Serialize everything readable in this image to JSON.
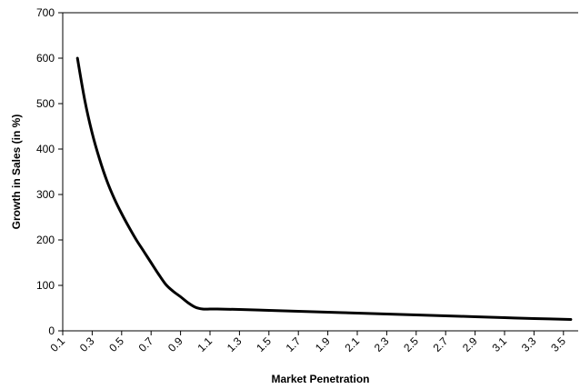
{
  "chart_data": {
    "type": "line",
    "title": "",
    "xlabel": "Market Penetration",
    "ylabel": "Growth in Sales (in %)",
    "xlim": [
      0.1,
      3.6
    ],
    "ylim": [
      0,
      700
    ],
    "grid": false,
    "x_ticks": [
      "0.1",
      "0.3",
      "0.5",
      "0.7",
      "0.9",
      "1.1",
      "1.3",
      "1.5",
      "1.7",
      "1.9",
      "2.1",
      "2.3",
      "2.5",
      "2.7",
      "2.9",
      "3.1",
      "3.3",
      "3.5"
    ],
    "y_ticks": [
      "0",
      "100",
      "200",
      "300",
      "400",
      "500",
      "600",
      "700"
    ],
    "series": [
      {
        "color": "#000000",
        "x": [
          0.2,
          0.25,
          0.3,
          0.35,
          0.4,
          0.45,
          0.5,
          0.55,
          0.6,
          0.65,
          0.7,
          0.75,
          0.8,
          0.85,
          0.9,
          0.95,
          1.0,
          1.05,
          1.1,
          1.15,
          1.3,
          1.5,
          1.7,
          1.9,
          2.1,
          2.3,
          2.5,
          2.7,
          2.9,
          3.1,
          3.3,
          3.55
        ],
        "y": [
          600,
          507,
          435,
          378,
          330,
          291,
          258,
          228,
          200,
          175,
          150,
          125,
          102,
          87,
          75,
          62,
          52,
          48,
          48,
          48,
          47,
          45,
          43,
          41,
          39,
          37,
          35,
          33,
          31,
          29,
          27,
          25
        ]
      }
    ]
  }
}
